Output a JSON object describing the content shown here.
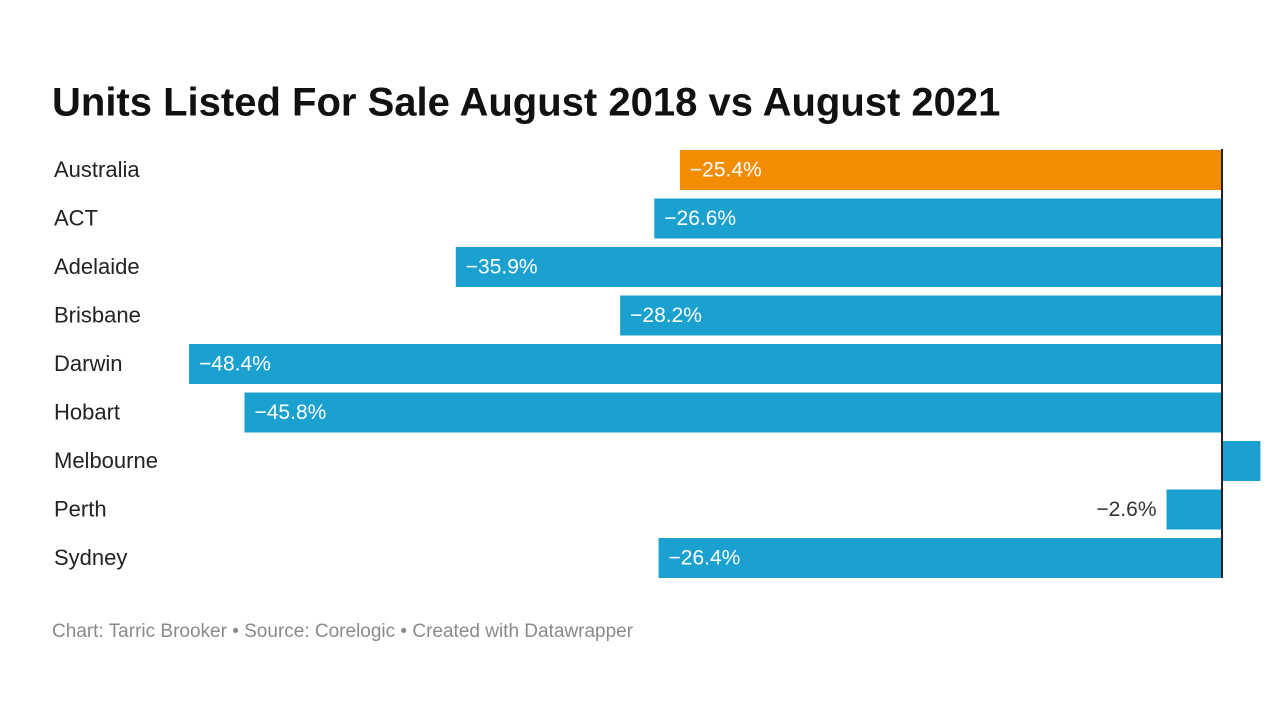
{
  "chart_data": {
    "type": "bar",
    "orientation": "horizontal",
    "title": "Units Listed For Sale August 2018 vs August 2021",
    "categories": [
      "Australia",
      "ACT",
      "Adelaide",
      "Brisbane",
      "Darwin",
      "Hobart",
      "Melbourne",
      "Perth",
      "Sydney"
    ],
    "values": [
      -25.4,
      -26.6,
      -35.9,
      -28.2,
      -48.4,
      -45.8,
      1.8,
      -2.6,
      -26.4
    ],
    "value_labels": [
      "−25.4%",
      "−26.6%",
      "−35.9%",
      "−28.2%",
      "−48.4%",
      "−45.8%",
      null,
      "−2.6%",
      "−26.4%"
    ],
    "colors": [
      "#f28c00",
      "#1ba1cf",
      "#1ba1cf",
      "#1ba1cf",
      "#1ba1cf",
      "#1ba1cf",
      "#1ba1cf",
      "#1ba1cf",
      "#1ba1cf"
    ],
    "footer": "Chart: Tarric Brooker • Source: Corelogic • Created with Datawrapper"
  }
}
